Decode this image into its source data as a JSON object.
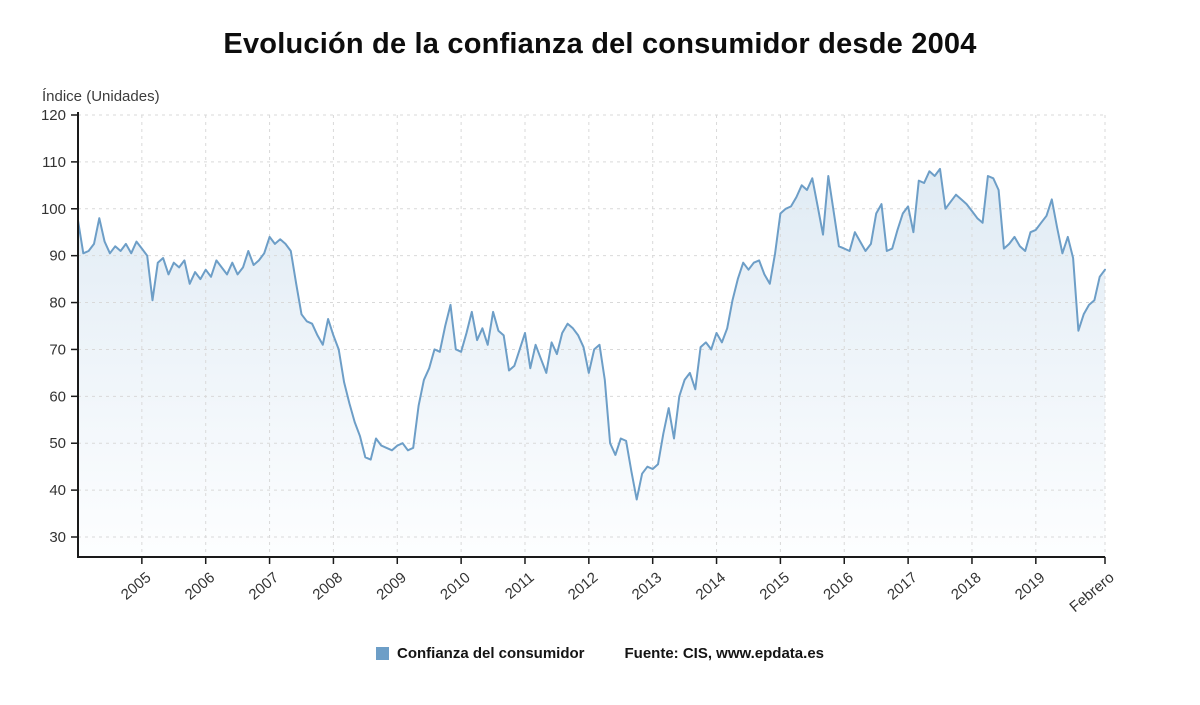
{
  "title": "Evolución de la confianza del consumidor desde 2004",
  "legend": {
    "series_label": "Confianza del consumidor",
    "source": "Fuente: CIS, www.epdata.es"
  },
  "chart_data": {
    "type": "line",
    "title": "Evolución de la confianza del consumidor desde 2004",
    "xlabel": "",
    "ylabel": "Índice (Unidades)",
    "ylim": [
      30,
      120
    ],
    "ytick_step": 10,
    "grid": true,
    "legend_position": "bottom",
    "line_color": "#6d9ec7",
    "area_color_top": "#e0ebf4",
    "area_color_bottom": "#fdfeff",
    "grid_color": "#d9d9d9",
    "axis_color": "#1a1a1a",
    "tick_label_color": "#333333",
    "x_start": "2004-01",
    "x_end": "2020-02",
    "frequency": "monthly",
    "x_tick_labels": [
      "2005",
      "2006",
      "2007",
      "2008",
      "2009",
      "2010",
      "2011",
      "2012",
      "2013",
      "2014",
      "2015",
      "2016",
      "2017",
      "2018",
      "2019",
      "Febrero"
    ],
    "x_tick_months": [
      12,
      24,
      36,
      48,
      60,
      72,
      84,
      96,
      108,
      120,
      132,
      144,
      156,
      168,
      180,
      193
    ],
    "series": [
      {
        "name": "Confianza del consumidor",
        "values": [
          97.5,
          90.5,
          91,
          92.5,
          98,
          93,
          90.5,
          92,
          91,
          92.5,
          90.5,
          93,
          91.5,
          90,
          80.5,
          88.5,
          89.5,
          86,
          88.5,
          87.5,
          89,
          84,
          86.5,
          85,
          87,
          85.5,
          89,
          87.5,
          86,
          88.5,
          86,
          87.5,
          91,
          88,
          89,
          90.5,
          94,
          92.5,
          93.5,
          92.5,
          91,
          84,
          77.5,
          76,
          75.5,
          73,
          71,
          76.5,
          73,
          70,
          63,
          58.5,
          54.5,
          51.5,
          47,
          46.5,
          51,
          49.5,
          49,
          48.5,
          49.5,
          50,
          48.5,
          49,
          58,
          63.5,
          66,
          70,
          69.5,
          75,
          79.5,
          70,
          69.5,
          73.5,
          78,
          72,
          74.5,
          71,
          78,
          74,
          73,
          65.5,
          66.5,
          70,
          73.5,
          66,
          71,
          68,
          65,
          71.5,
          69,
          73.5,
          75.5,
          74.5,
          73,
          70.5,
          65,
          70,
          71,
          63.5,
          50,
          47.5,
          51,
          50.5,
          44,
          38,
          43.5,
          45,
          44.5,
          45.5,
          52,
          57.5,
          51,
          60,
          63.5,
          65,
          61.5,
          70.5,
          71.5,
          70,
          73.5,
          71.5,
          74.5,
          80.5,
          85,
          88.5,
          87,
          88.5,
          89,
          86,
          84,
          90.5,
          99,
          100,
          100.5,
          102.5,
          105,
          104,
          106.5,
          100.5,
          94.5,
          107,
          99.5,
          92,
          91.5,
          91,
          95,
          93,
          91,
          92.5,
          99,
          101,
          91,
          91.5,
          95.5,
          99,
          100.5,
          95,
          106,
          105.5,
          108,
          107,
          108.5,
          100,
          101.5,
          103,
          102,
          101,
          99.5,
          98,
          97,
          107,
          106.5,
          104,
          91.5,
          92.5,
          94,
          92,
          91,
          95,
          95.5,
          97,
          98.5,
          102,
          96,
          90.5,
          94,
          89.5,
          74,
          77.5,
          79.5,
          80.5,
          85.5,
          87
        ]
      }
    ]
  }
}
